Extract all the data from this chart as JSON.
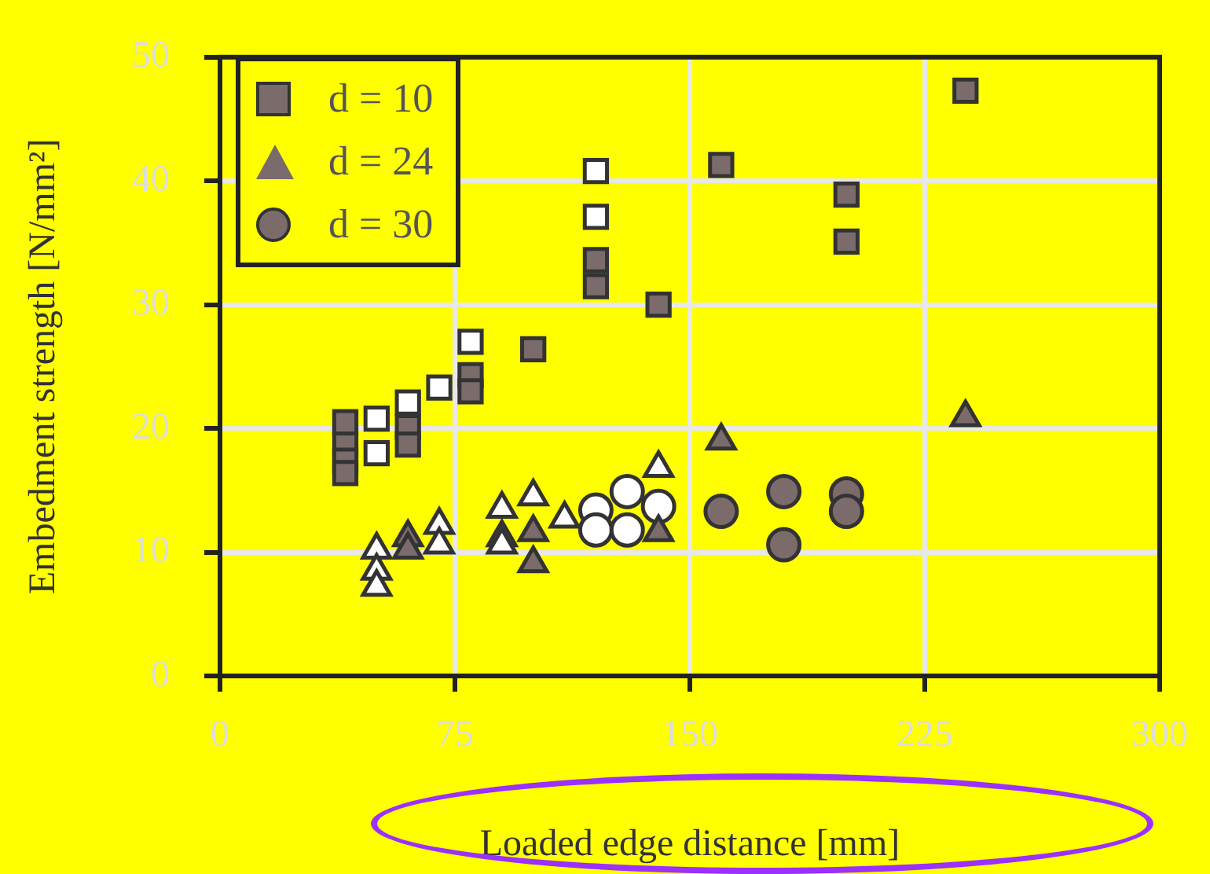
{
  "chart_data": {
    "type": "scatter",
    "xlabel": "Loaded edge distance [mm]",
    "ylabel": "Embedment strength [N/mm²]",
    "xlim": [
      0,
      300
    ],
    "xticks": [
      0,
      75,
      150,
      225,
      300
    ],
    "ylim": [
      0,
      50
    ],
    "yticks": [
      0,
      10,
      20,
      30,
      40,
      50
    ],
    "grid": true,
    "legend": "top left",
    "series": [
      {
        "name": "d = 10",
        "marker": "square",
        "color": "#7b6b6b",
        "x": [
          40,
          40,
          40,
          40,
          60,
          60,
          80,
          80,
          100,
          120,
          120,
          140,
          160,
          200,
          200,
          238
        ],
        "values": [
          20.5,
          18.7,
          17.4,
          16.4,
          20.1,
          18.7,
          24.3,
          23,
          26.4,
          33.6,
          31.5,
          30,
          41.3,
          38.9,
          35.1,
          47.3
        ]
      },
      {
        "marker": "square",
        "color": "#ffffff",
        "x": [
          50,
          50,
          60,
          70,
          80,
          120,
          120
        ],
        "values": [
          20.8,
          18,
          22.1,
          23.3,
          27,
          40.8,
          37.1
        ]
      },
      {
        "name": "d = 24",
        "marker": "triangle",
        "color": "#7b6b6b",
        "x": [
          60,
          60,
          100,
          100,
          140,
          160,
          238
        ],
        "values": [
          11.2,
          10.2,
          11.6,
          9.1,
          11.6,
          19,
          20.9
        ]
      },
      {
        "marker": "triangle",
        "color": "#ffffff",
        "x": [
          50,
          50,
          50,
          70,
          70,
          90,
          90,
          90,
          100,
          110,
          140
        ],
        "values": [
          10.2,
          8.5,
          7.2,
          12.2,
          10.6,
          13.5,
          11.2,
          10.6,
          14.5,
          12.7,
          16.8
        ]
      },
      {
        "name": "d = 30",
        "marker": "circle",
        "color": "#7b6b6b",
        "x": [
          160,
          180,
          180,
          200,
          200
        ],
        "values": [
          13.3,
          14.9,
          10.6,
          14.7,
          13.3
        ]
      },
      {
        "marker": "circle",
        "color": "#ffffff",
        "x": [
          120,
          120,
          130,
          130,
          140
        ],
        "values": [
          13.4,
          11.8,
          14.9,
          11.8,
          13.7
        ]
      }
    ]
  }
}
